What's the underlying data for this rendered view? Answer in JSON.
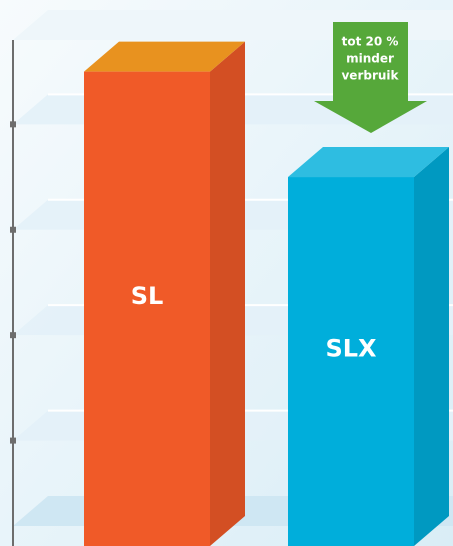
{
  "chart_data": {
    "type": "bar3d",
    "categories": [
      "SL",
      "SLX"
    ],
    "values": [
      4.5,
      3.5
    ],
    "colors": [
      "#f05a28",
      "#00aedb"
    ],
    "ylim": [
      0,
      4.8
    ],
    "yticks": [
      1,
      2,
      3,
      4
    ],
    "grid": true,
    "annotation": [
      "tot 20 %",
      "minder",
      "verbruik"
    ],
    "annotation_color": "#56a83a"
  }
}
